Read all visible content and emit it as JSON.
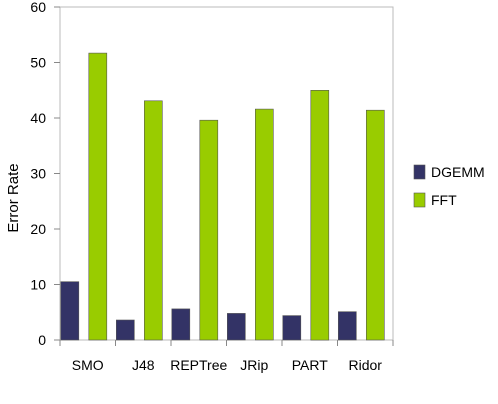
{
  "chart_data": {
    "type": "bar",
    "title": "",
    "xlabel": "",
    "ylabel": "Error Rate",
    "ylim": [
      0,
      60
    ],
    "yticks": [
      0,
      10,
      20,
      30,
      40,
      50,
      60
    ],
    "grid": false,
    "legend_position": "right",
    "categories": [
      "SMO",
      "J48",
      "REPTree",
      "JRip",
      "PART",
      "Ridor"
    ],
    "series": [
      {
        "name": "DGEMM",
        "color": "#333366",
        "values": [
          10.5,
          3.6,
          5.6,
          4.8,
          4.4,
          5.1
        ]
      },
      {
        "name": "FFT",
        "color": "#99cc00",
        "values": [
          51.7,
          43.1,
          39.6,
          41.6,
          45.0,
          41.4
        ]
      }
    ]
  }
}
